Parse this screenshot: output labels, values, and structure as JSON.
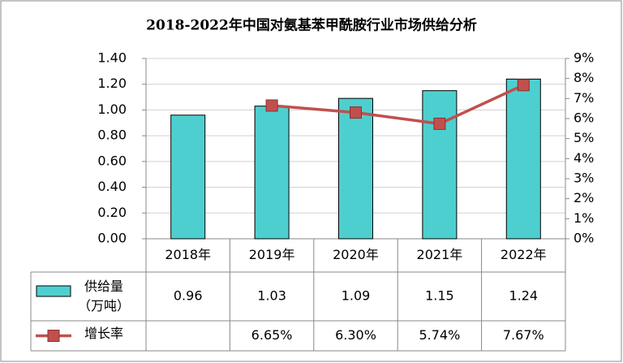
{
  "chart_data": {
    "type": "bar",
    "title": "2018-2022年中国对氨基苯甲酰胺行业市场供给分析",
    "categories": [
      "2018年",
      "2019年",
      "2020年",
      "2021年",
      "2022年"
    ],
    "series": [
      {
        "name": "供给量（万吨）",
        "color": "#4ecfcf",
        "values": [
          0.96,
          1.03,
          1.09,
          1.15,
          1.24
        ]
      },
      {
        "name": "增长率",
        "type": "line",
        "axis": "y2",
        "color": "#c0504d",
        "values": [
          null,
          6.65,
          6.3,
          5.74,
          7.67
        ],
        "value_labels": [
          null,
          "6.65%",
          "6.30%",
          "5.74%",
          "7.67%"
        ]
      }
    ],
    "ylim": [
      0,
      1.4
    ],
    "yticks": [
      {
        "value": 0,
        "label": "0.00"
      },
      {
        "value": 0.2,
        "label": "0.20"
      },
      {
        "value": 0.4,
        "label": "0.40"
      },
      {
        "value": 0.6,
        "label": "0.60"
      },
      {
        "value": 0.8,
        "label": "0.80"
      },
      {
        "value": 1.0,
        "label": "1.00"
      },
      {
        "value": 1.2,
        "label": "1.20"
      },
      {
        "value": 1.4,
        "label": "1.40"
      }
    ],
    "y2lim": [
      0,
      9
    ],
    "y2ticks": [
      {
        "value": 0,
        "label": "0%"
      },
      {
        "value": 1,
        "label": "1%"
      },
      {
        "value": 2,
        "label": "2%"
      },
      {
        "value": 3,
        "label": "3%"
      },
      {
        "value": 4,
        "label": "4%"
      },
      {
        "value": 5,
        "label": "5%"
      },
      {
        "value": 6,
        "label": "6%"
      },
      {
        "value": 7,
        "label": "7%"
      },
      {
        "value": 8,
        "label": "8%"
      },
      {
        "value": 9,
        "label": "9%"
      }
    ],
    "grid": true,
    "data_table": true
  }
}
